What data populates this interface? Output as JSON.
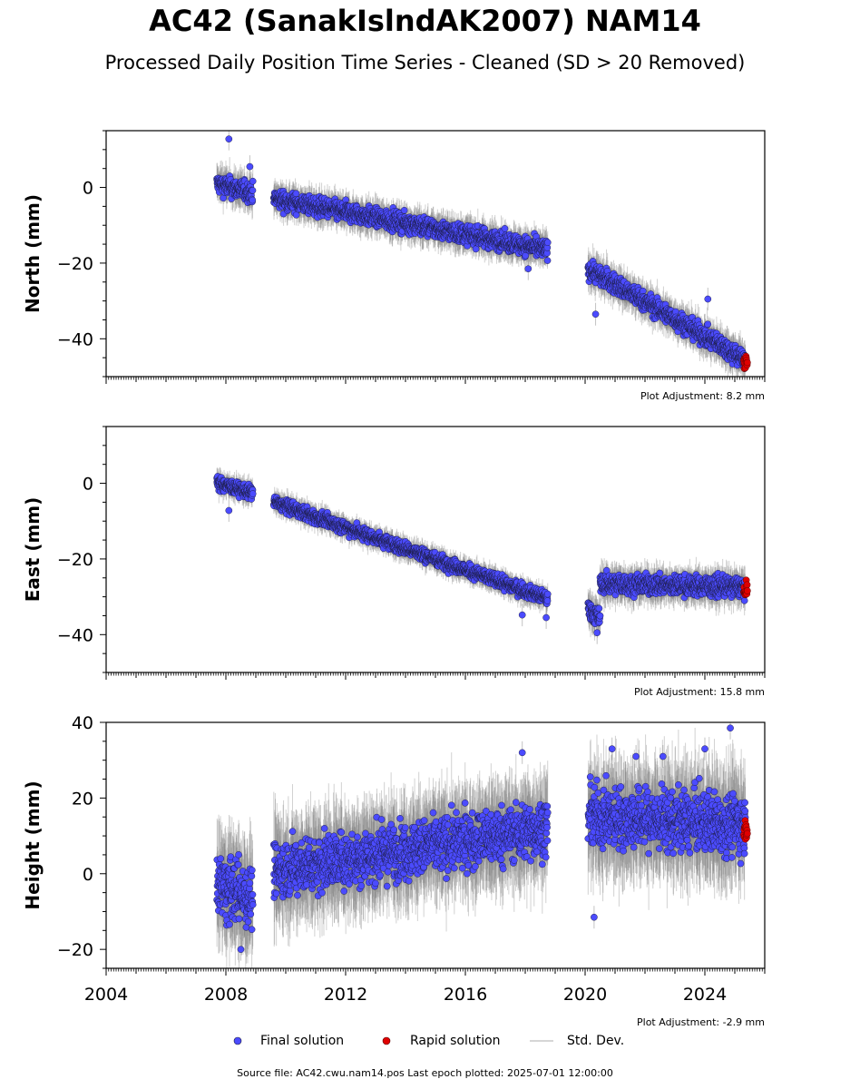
{
  "title": "AC42 (SanakIslndAK2007) NAM14",
  "subtitle": "Processed Daily Position Time Series - Cleaned (SD > 20 Removed)",
  "footer": "Source file: AC42.cwu.nam14.pos  Last epoch plotted: 2025-07-01 12:00:00",
  "legend": {
    "final": "Final solution",
    "rapid": "Rapid solution",
    "stddev": "Std. Dev."
  },
  "colors": {
    "final": "#4b4bff",
    "rapid": "#e00000",
    "stddev": "#c8c8c8",
    "marker_edge": "#1a1a3a"
  },
  "chart_data": [
    {
      "type": "scatter",
      "component": "north",
      "ylabel": "North (mm)",
      "adjustment": "Plot Adjustment: 8.2 mm",
      "xlim": [
        2004,
        2026
      ],
      "ylim": [
        -50,
        15
      ],
      "yticks": [
        0,
        -20,
        -40
      ],
      "ytick_labels": [
        "0",
        "−20",
        "−40"
      ],
      "series": [
        {
          "name": "Final solution",
          "segments": [
            {
              "x": [
                2007.7,
                2008.9
              ],
              "y": [
                1.0,
                -1.5
              ],
              "scatter": 1.8
            },
            {
              "x": [
                2009.6,
                2018.75
              ],
              "y": [
                -3.0,
                -16.5
              ],
              "scatter": 1.7
            },
            {
              "x": [
                2020.1,
                2025.35
              ],
              "y": [
                -21.5,
                -45.5
              ],
              "scatter": 1.8
            }
          ],
          "outliers": [
            {
              "x": 2008.1,
              "y": 12.8
            },
            {
              "x": 2008.8,
              "y": 5.5
            },
            {
              "x": 2020.35,
              "y": -33.5
            },
            {
              "x": 2024.1,
              "y": -29.5
            },
            {
              "x": 2018.1,
              "y": -21.5
            }
          ]
        },
        {
          "name": "Rapid solution",
          "x": [
            2025.3,
            2025.5
          ],
          "y": [
            -44.5,
            -48.5
          ]
        }
      ]
    },
    {
      "type": "scatter",
      "component": "east",
      "ylabel": "East (mm)",
      "adjustment": "Plot Adjustment: 15.8 mm",
      "xlim": [
        2004,
        2026
      ],
      "ylim": [
        -50,
        15
      ],
      "yticks": [
        0,
        -20,
        -40
      ],
      "ytick_labels": [
        "0",
        "−20",
        "−40"
      ],
      "series": [
        {
          "name": "Final solution",
          "segments": [
            {
              "x": [
                2007.7,
                2008.9
              ],
              "y": [
                0.0,
                -2.5
              ],
              "scatter": 1.2
            },
            {
              "x": [
                2009.6,
                2018.75
              ],
              "y": [
                -5.0,
                -30.5
              ],
              "scatter": 1.2
            },
            {
              "x": [
                2020.1,
                2020.5
              ],
              "y": [
                -33.0,
                -36.0
              ],
              "scatter": 1.8
            },
            {
              "x": [
                2020.5,
                2025.35
              ],
              "y": [
                -26.5,
                -27.5
              ],
              "scatter": 1.8
            }
          ],
          "outliers": [
            {
              "x": 2008.1,
              "y": -7.2
            },
            {
              "x": 2017.9,
              "y": -34.8
            },
            {
              "x": 2018.7,
              "y": -35.5
            },
            {
              "x": 2020.4,
              "y": -39.5
            }
          ]
        },
        {
          "name": "Rapid solution",
          "x": [
            2025.3,
            2025.5
          ],
          "y": [
            -25.5,
            -29.5
          ]
        }
      ]
    },
    {
      "type": "scatter",
      "component": "height",
      "ylabel": "Height (mm)",
      "adjustment": "Plot Adjustment: -2.9 mm",
      "xlim": [
        2004,
        2026
      ],
      "ylim": [
        -25,
        40
      ],
      "yticks": [
        40,
        20,
        0,
        -20
      ],
      "ytick_labels": [
        "40",
        "20",
        "0",
        "−20"
      ],
      "xticks": [
        2004,
        2008,
        2012,
        2016,
        2020,
        2024
      ],
      "xtick_labels": [
        "2004",
        "2008",
        "2012",
        "2016",
        "2020",
        "2024"
      ],
      "series": [
        {
          "name": "Final solution",
          "segments": [
            {
              "x": [
                2007.7,
                2008.9
              ],
              "y": [
                -3.0,
                -6.0
              ],
              "scatter": 5.5
            },
            {
              "x": [
                2009.6,
                2018.75
              ],
              "y": [
                1.0,
                12.0
              ],
              "scatter": 5.0
            },
            {
              "x": [
                2020.1,
                2025.35
              ],
              "y": [
                15.0,
                13.0
              ],
              "scatter": 5.5
            }
          ],
          "outliers": [
            {
              "x": 2024.85,
              "y": 38.5
            },
            {
              "x": 2017.9,
              "y": 32.0
            },
            {
              "x": 2020.9,
              "y": 33.0
            },
            {
              "x": 2024.0,
              "y": 33.0
            },
            {
              "x": 2020.3,
              "y": -11.5
            },
            {
              "x": 2008.5,
              "y": -20.0
            },
            {
              "x": 2021.7,
              "y": 31.0
            },
            {
              "x": 2022.6,
              "y": 31.0
            }
          ]
        },
        {
          "name": "Rapid solution",
          "x": [
            2025.3,
            2025.5
          ],
          "y": [
            9.0,
            17.0
          ]
        }
      ]
    }
  ]
}
